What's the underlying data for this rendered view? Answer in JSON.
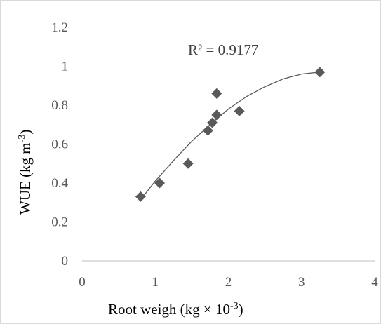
{
  "chart_data": {
    "type": "scatter",
    "xlabel": "Root weigh (kg × 10",
    "xlabel_sup": "-3",
    "xlabel_end": ")",
    "ylabel": "WUE (kg m",
    "ylabel_sup": "-3",
    "ylabel_end": ")",
    "xlim": [
      0,
      4
    ],
    "ylim": [
      0,
      1.2
    ],
    "x_ticks": [
      0,
      1,
      2,
      3,
      4
    ],
    "x_tick_labels": [
      "0",
      "1",
      "2",
      "3",
      "4"
    ],
    "y_ticks": [
      0,
      0.2,
      0.4,
      0.6,
      0.8,
      1,
      1.2
    ],
    "y_tick_labels": [
      "0",
      "0.2",
      "0.4",
      "0.6",
      "0.8",
      "1",
      "1.2"
    ],
    "grid": false,
    "marker": "diamond",
    "marker_color": "#595959",
    "trendline": {
      "type": "polynomial",
      "order": 2,
      "color": "#595959",
      "r_squared_label": "R² = 0.9177",
      "points": [
        {
          "x": 0.8,
          "y": 0.315
        },
        {
          "x": 1.0,
          "y": 0.41
        },
        {
          "x": 1.25,
          "y": 0.515
        },
        {
          "x": 1.5,
          "y": 0.615
        },
        {
          "x": 1.75,
          "y": 0.7
        },
        {
          "x": 2.0,
          "y": 0.78
        },
        {
          "x": 2.25,
          "y": 0.845
        },
        {
          "x": 2.5,
          "y": 0.895
        },
        {
          "x": 2.75,
          "y": 0.935
        },
        {
          "x": 3.0,
          "y": 0.96
        },
        {
          "x": 3.25,
          "y": 0.97
        }
      ]
    },
    "points": [
      {
        "x": 0.8,
        "y": 0.33
      },
      {
        "x": 1.06,
        "y": 0.4
      },
      {
        "x": 1.45,
        "y": 0.5
      },
      {
        "x": 1.72,
        "y": 0.67
      },
      {
        "x": 1.78,
        "y": 0.71
      },
      {
        "x": 1.84,
        "y": 0.75
      },
      {
        "x": 1.84,
        "y": 0.86
      },
      {
        "x": 2.15,
        "y": 0.77
      },
      {
        "x": 3.25,
        "y": 0.97
      }
    ]
  }
}
